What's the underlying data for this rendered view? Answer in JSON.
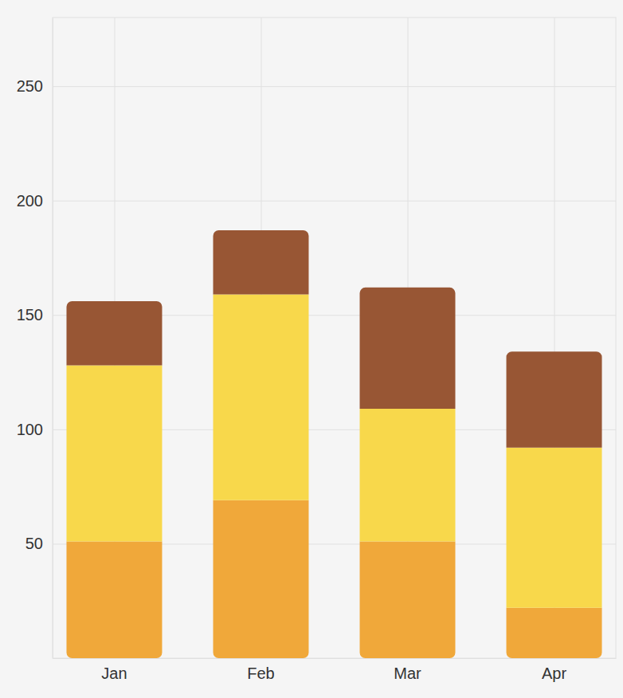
{
  "chart_data": {
    "type": "bar",
    "stacked": true,
    "grid": true,
    "categories": [
      "Jan",
      "Feb",
      "Mar",
      "Apr"
    ],
    "series": [
      {
        "color": "#f0a83a",
        "values": [
          51,
          69,
          51,
          22
        ]
      },
      {
        "color": "#f8d84b",
        "values": [
          77,
          90,
          58,
          70
        ]
      },
      {
        "color": "#985634",
        "values": [
          28,
          28,
          53,
          42
        ]
      }
    ],
    "ylim": [
      0,
      280
    ],
    "yticks": [
      50,
      100,
      150,
      200,
      250
    ]
  }
}
